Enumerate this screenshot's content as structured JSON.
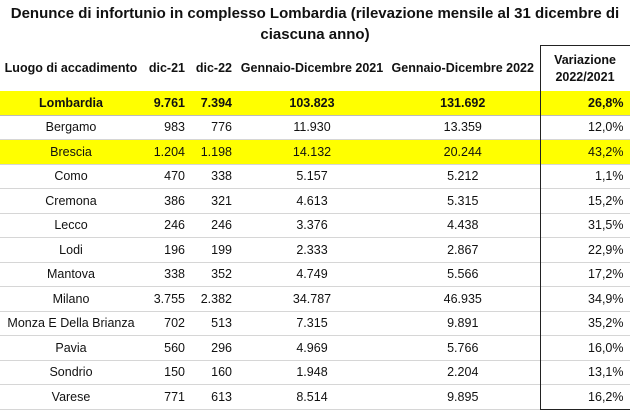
{
  "title": "Denunce di infortunio in complesso Lombardia (rilevazione mensile al 31 dicembre di ciascuna anno)",
  "columns": [
    "Luogo di accadimento",
    "dic-21",
    "dic-22",
    "Gennaio-Dicembre 2021",
    "Gennaio-Dicembre 2022",
    "Variazione 2022/2021"
  ],
  "highlight_color": "#ffff00",
  "rows": [
    {
      "luogo": "Lombardia",
      "dic21": "9.761",
      "dic22": "7.394",
      "gd2021": "103.823",
      "gd2022": "131.692",
      "var": "26,8%",
      "highlight": true,
      "bold": true
    },
    {
      "luogo": "Bergamo",
      "dic21": "983",
      "dic22": "776",
      "gd2021": "11.930",
      "gd2022": "13.359",
      "var": "12,0%"
    },
    {
      "luogo": "Brescia",
      "dic21": "1.204",
      "dic22": "1.198",
      "gd2021": "14.132",
      "gd2022": "20.244",
      "var": "43,2%",
      "highlight": true
    },
    {
      "luogo": "Como",
      "dic21": "470",
      "dic22": "338",
      "gd2021": "5.157",
      "gd2022": "5.212",
      "var": "1,1%"
    },
    {
      "luogo": "Cremona",
      "dic21": "386",
      "dic22": "321",
      "gd2021": "4.613",
      "gd2022": "5.315",
      "var": "15,2%"
    },
    {
      "luogo": "Lecco",
      "dic21": "246",
      "dic22": "246",
      "gd2021": "3.376",
      "gd2022": "4.438",
      "var": "31,5%"
    },
    {
      "luogo": "Lodi",
      "dic21": "196",
      "dic22": "199",
      "gd2021": "2.333",
      "gd2022": "2.867",
      "var": "22,9%"
    },
    {
      "luogo": "Mantova",
      "dic21": "338",
      "dic22": "352",
      "gd2021": "4.749",
      "gd2022": "5.566",
      "var": "17,2%"
    },
    {
      "luogo": "Milano",
      "dic21": "3.755",
      "dic22": "2.382",
      "gd2021": "34.787",
      "gd2022": "46.935",
      "var": "34,9%"
    },
    {
      "luogo": "Monza E Della Brianza",
      "dic21": "702",
      "dic22": "513",
      "gd2021": "7.315",
      "gd2022": "9.891",
      "var": "35,2%"
    },
    {
      "luogo": "Pavia",
      "dic21": "560",
      "dic22": "296",
      "gd2021": "4.969",
      "gd2022": "5.766",
      "var": "16,0%"
    },
    {
      "luogo": "Sondrio",
      "dic21": "150",
      "dic22": "160",
      "gd2021": "1.948",
      "gd2022": "2.204",
      "var": "13,1%"
    },
    {
      "luogo": "Varese",
      "dic21": "771",
      "dic22": "613",
      "gd2021": "8.514",
      "gd2022": "9.895",
      "var": "16,2%"
    }
  ]
}
